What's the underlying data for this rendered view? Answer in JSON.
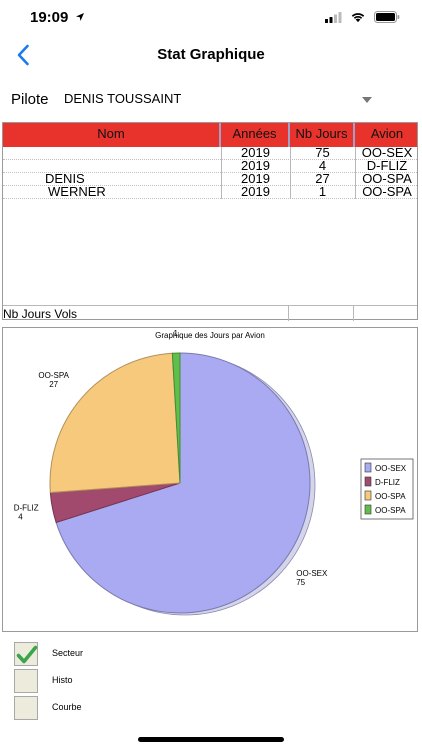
{
  "status": {
    "time": "19:09"
  },
  "nav": {
    "title": "Stat Graphique"
  },
  "pilot": {
    "label": "Pilote",
    "value": "DENIS TOUSSAINT"
  },
  "table": {
    "headers": [
      "Nom",
      "Années",
      "Nb Jours",
      "Avion"
    ],
    "rows": [
      [
        "",
        "2019",
        "75",
        "OO-SEX"
      ],
      [
        "",
        "2019",
        "4",
        "D-FLIZ"
      ],
      [
        "DENIS",
        "2019",
        "27",
        "OO-SPA"
      ],
      [
        "WERNER",
        "2019",
        "1",
        "OO-SPA"
      ]
    ],
    "footer_label": "Nb Jours Vols"
  },
  "chart_data": {
    "type": "pie",
    "title": "Graphique des Jours par Avion",
    "categories": [
      "OO-SEX",
      "D-FLIZ",
      "OO-SPA",
      "OO-SPA"
    ],
    "values": [
      75,
      4,
      27,
      1
    ],
    "colors": [
      "#a9aaf2",
      "#a24a6e",
      "#f6c97c",
      "#5fbf4a"
    ],
    "legend": "right"
  },
  "options": {
    "pie_label": "Secteur",
    "histo_label": "Histo",
    "curve_label": "Courbe",
    "pie_checked": true,
    "histo_checked": false,
    "curve_checked": false
  },
  "icons": {
    "signal": "cellular-signal-icon",
    "wifi": "wifi-icon",
    "battery": "battery-icon",
    "back": "chevron-left-icon",
    "check": "checkmark-icon"
  },
  "colors": {
    "header_red": "#e8322c",
    "ios_blue": "#1a7cf0",
    "check_green": "#3aa54a"
  }
}
